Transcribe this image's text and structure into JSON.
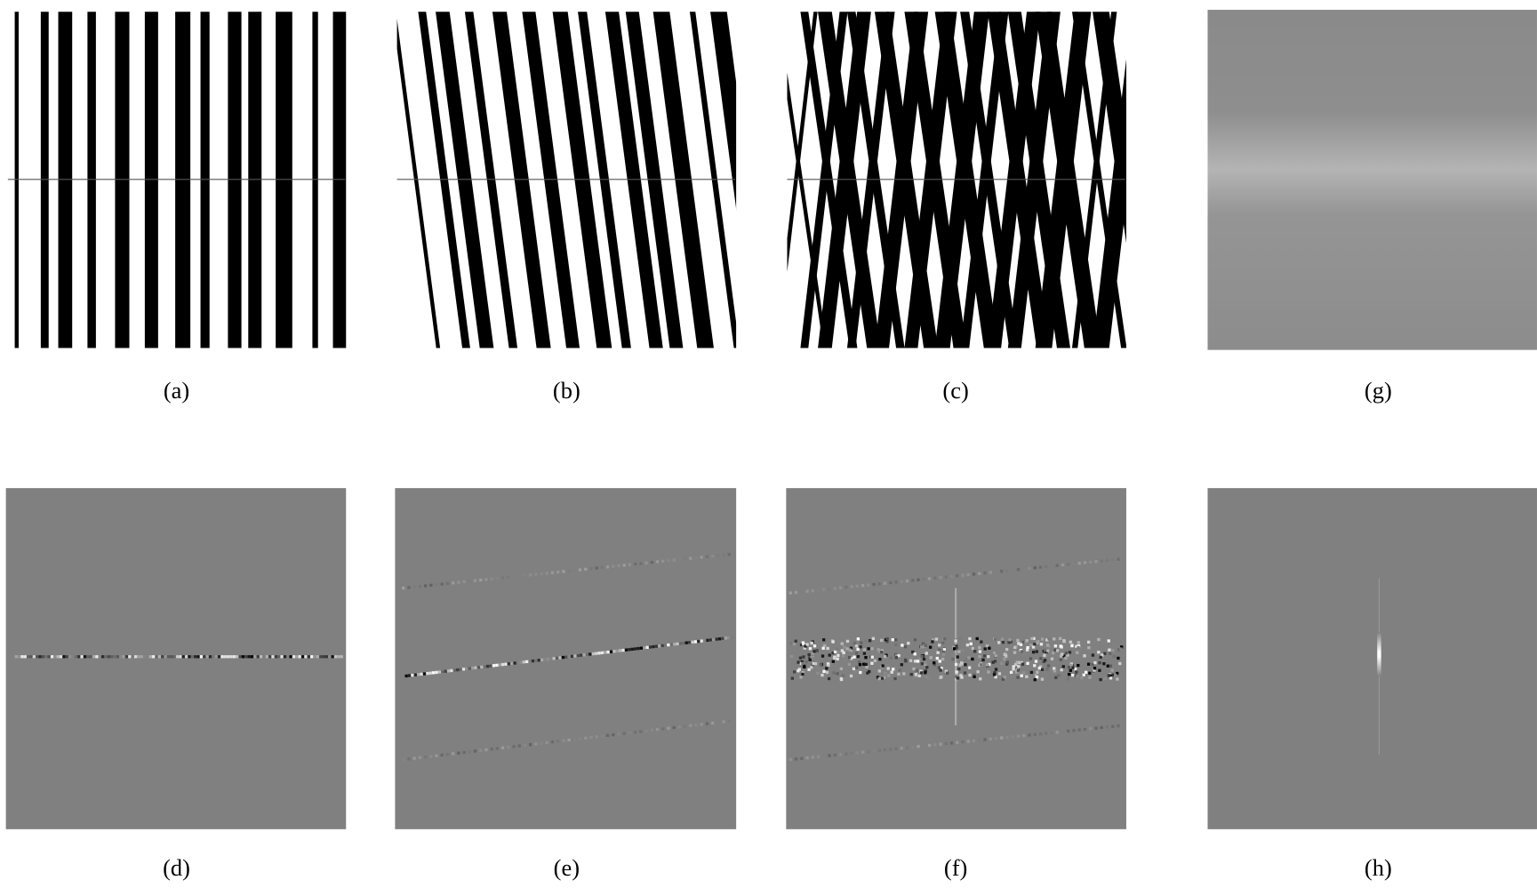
{
  "panels": [
    {
      "label": "(a)"
    },
    {
      "label": "(b)"
    },
    {
      "label": "(c)"
    },
    {
      "label": "(g)"
    },
    {
      "label": "(d)"
    },
    {
      "label": "(e)"
    },
    {
      "label": "(f)"
    },
    {
      "label": "(h)"
    }
  ]
}
